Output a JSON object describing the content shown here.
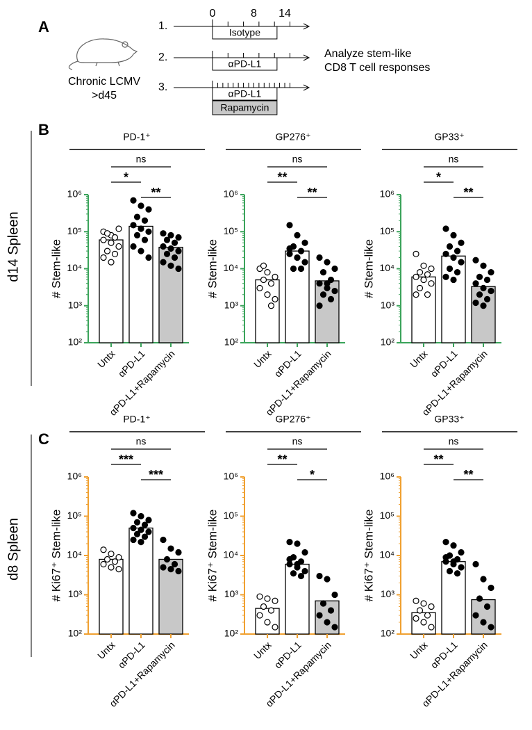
{
  "panel_labels": [
    "A",
    "B",
    "C"
  ],
  "row_labels": [
    "d14 Spleen",
    "d8 Spleen"
  ],
  "schematic": {
    "infection": [
      "Chronic LCMV",
      ">d45"
    ],
    "timeline_ticks": [
      0,
      8,
      14
    ],
    "groups": [
      "1.",
      "2.",
      "3."
    ],
    "treatments": [
      "Isotype",
      "αPD-L1",
      "αPD-L1",
      "Rapamycin"
    ],
    "readout": [
      "Analyze stem-like",
      "CD8 T cell responses"
    ]
  },
  "chart_data": [
    {
      "type": "bar",
      "title": "PD-1⁺",
      "ylabel": "# Stem-like",
      "categories": [
        "Untx",
        "αPD-L1",
        "αPD-L1+Rapamycin"
      ],
      "values": [
        60000,
        140000,
        38000
      ],
      "bar_colors": [
        "#ffffff",
        "#ffffff",
        "#c8c8c8"
      ],
      "marker_fills": [
        "#ffffff",
        "#000000",
        "#000000"
      ],
      "points": [
        [
          100000,
          80000,
          120000,
          90000,
          70000,
          60000,
          50000,
          40000,
          30000,
          25000,
          20000,
          15000
        ],
        [
          700000,
          500000,
          400000,
          250000,
          200000,
          150000,
          120000,
          100000,
          80000,
          60000,
          40000,
          30000,
          20000
        ],
        [
          90000,
          80000,
          70000,
          60000,
          50000,
          40000,
          35000,
          30000,
          25000,
          20000,
          15000,
          12000,
          10000
        ]
      ],
      "ylim": [
        100,
        1000000
      ],
      "log": true,
      "axis_color": "#3aa35a",
      "yticks": [
        {
          "value": 100,
          "label": "10²"
        },
        {
          "value": 1000,
          "label": "10³"
        },
        {
          "value": 10000,
          "label": "10⁴"
        },
        {
          "value": 100000,
          "label": "10⁵"
        },
        {
          "value": 1000000,
          "label": "10⁶"
        }
      ],
      "annotations": [
        {
          "text": "ns",
          "from": 0,
          "to": 2
        },
        {
          "text": "*",
          "from": 0,
          "to": 1
        },
        {
          "text": "**",
          "from": 1,
          "to": 2
        }
      ]
    },
    {
      "type": "bar",
      "title": "GP276⁺",
      "ylabel": "# Stem-like",
      "categories": [
        "Untx",
        "αPD-L1",
        "αPD-L1+Rapamycin"
      ],
      "values": [
        5000,
        30000,
        4700
      ],
      "bar_colors": [
        "#ffffff",
        "#ffffff",
        "#c8c8c8"
      ],
      "marker_fills": [
        "#ffffff",
        "#000000",
        "#000000"
      ],
      "points": [
        [
          10000,
          8000,
          6000,
          5000,
          4000,
          3000,
          2000,
          1500,
          12000,
          1000
        ],
        [
          150000,
          80000,
          50000,
          40000,
          30000,
          25000,
          20000,
          15000,
          10000,
          10000,
          35000,
          20000
        ],
        [
          20000,
          15000,
          10000,
          8000,
          5000,
          4000,
          3000,
          2500,
          2000,
          1500,
          1000,
          4000
        ]
      ],
      "ylim": [
        100,
        1000000
      ],
      "log": true,
      "axis_color": "#3aa35a",
      "yticks": [
        {
          "value": 100,
          "label": "10²"
        },
        {
          "value": 1000,
          "label": "10³"
        },
        {
          "value": 10000,
          "label": "10⁴"
        },
        {
          "value": 100000,
          "label": "10⁵"
        },
        {
          "value": 1000000,
          "label": "10⁶"
        }
      ],
      "annotations": [
        {
          "text": "ns",
          "from": 0,
          "to": 2
        },
        {
          "text": "**",
          "from": 0,
          "to": 1
        },
        {
          "text": "**",
          "from": 1,
          "to": 2
        }
      ]
    },
    {
      "type": "bar",
      "title": "GP33⁺",
      "ylabel": "# Stem-like",
      "categories": [
        "Untx",
        "αPD-L1",
        "αPD-L1+Rapamycin"
      ],
      "values": [
        6000,
        22000,
        3300
      ],
      "bar_colors": [
        "#ffffff",
        "#ffffff",
        "#c8c8c8"
      ],
      "marker_fills": [
        "#ffffff",
        "#000000",
        "#000000"
      ],
      "points": [
        [
          25000,
          12000,
          10000,
          8000,
          7000,
          6000,
          5000,
          4000,
          3000,
          2000,
          2000
        ],
        [
          120000,
          80000,
          50000,
          40000,
          30000,
          25000,
          20000,
          15000,
          10000,
          8000,
          6000,
          5000
        ],
        [
          17000,
          12000,
          8000,
          6000,
          5000,
          4000,
          3000,
          2500,
          2000,
          1500,
          1200,
          1000
        ]
      ],
      "ylim": [
        100,
        1000000
      ],
      "log": true,
      "axis_color": "#3aa35a",
      "yticks": [
        {
          "value": 100,
          "label": "10²"
        },
        {
          "value": 1000,
          "label": "10³"
        },
        {
          "value": 10000,
          "label": "10⁴"
        },
        {
          "value": 100000,
          "label": "10⁵"
        },
        {
          "value": 1000000,
          "label": "10⁶"
        }
      ],
      "annotations": [
        {
          "text": "ns",
          "from": 0,
          "to": 2
        },
        {
          "text": "*",
          "from": 0,
          "to": 1
        },
        {
          "text": "**",
          "from": 1,
          "to": 2
        }
      ]
    },
    {
      "type": "bar",
      "title": "PD-1⁺",
      "ylabel": "# Ki67⁺ Stem-like",
      "categories": [
        "Untx",
        "αPD-L1",
        "αPD-L1+Rapamycin"
      ],
      "values": [
        8000,
        50000,
        8000
      ],
      "bar_colors": [
        "#ffffff",
        "#ffffff",
        "#c8c8c8"
      ],
      "marker_fills": [
        "#ffffff",
        "#000000",
        "#000000"
      ],
      "points": [
        [
          14000,
          11000,
          9000,
          8000,
          7000,
          6000,
          5000,
          4500
        ],
        [
          120000,
          100000,
          80000,
          70000,
          60000,
          50000,
          45000,
          40000,
          35000,
          30000,
          25000,
          22000
        ],
        [
          25000,
          15000,
          12000,
          8000,
          6000,
          5000,
          4500,
          4000
        ]
      ],
      "ylim": [
        100,
        1000000
      ],
      "log": true,
      "axis_color": "#f0a030",
      "yticks": [
        {
          "value": 100,
          "label": "10²"
        },
        {
          "value": 1000,
          "label": "10³"
        },
        {
          "value": 10000,
          "label": "10⁴"
        },
        {
          "value": 100000,
          "label": "10⁵"
        },
        {
          "value": 1000000,
          "label": "10⁶"
        }
      ],
      "annotations": [
        {
          "text": "ns",
          "from": 0,
          "to": 2
        },
        {
          "text": "***",
          "from": 0,
          "to": 1
        },
        {
          "text": "***",
          "from": 1,
          "to": 2
        }
      ]
    },
    {
      "type": "bar",
      "title": "GP276⁺",
      "ylabel": "# Ki67⁺ Stem-like",
      "categories": [
        "Untx",
        "αPD-L1",
        "αPD-L1+Rapamycin"
      ],
      "values": [
        450,
        6000,
        700
      ],
      "bar_colors": [
        "#ffffff",
        "#ffffff",
        "#c8c8c8"
      ],
      "marker_fills": [
        "#ffffff",
        "#000000",
        "#000000"
      ],
      "points": [
        [
          900,
          800,
          700,
          500,
          400,
          300,
          200,
          150
        ],
        [
          22000,
          20000,
          12000,
          9000,
          7000,
          6000,
          5000,
          4000,
          3500,
          3000,
          8000,
          6000
        ],
        [
          3000,
          2500,
          1000,
          600,
          400,
          300,
          200,
          150
        ]
      ],
      "ylim": [
        100,
        1000000
      ],
      "log": true,
      "axis_color": "#f0a030",
      "yticks": [
        {
          "value": 100,
          "label": "10²"
        },
        {
          "value": 1000,
          "label": "10³"
        },
        {
          "value": 10000,
          "label": "10⁴"
        },
        {
          "value": 100000,
          "label": "10⁵"
        },
        {
          "value": 1000000,
          "label": "10⁶"
        }
      ],
      "annotations": [
        {
          "text": "ns",
          "from": 0,
          "to": 2
        },
        {
          "text": "**",
          "from": 0,
          "to": 1
        },
        {
          "text": "*",
          "from": 1,
          "to": 2
        }
      ]
    },
    {
      "type": "bar",
      "title": "GP33⁺",
      "ylabel": "# Ki67⁺ Stem-like",
      "categories": [
        "Untx",
        "αPD-L1",
        "αPD-L1+Rapamycin"
      ],
      "values": [
        350,
        7000,
        750
      ],
      "bar_colors": [
        "#ffffff",
        "#ffffff",
        "#c8c8c8"
      ],
      "marker_fills": [
        "#ffffff",
        "#000000",
        "#000000"
      ],
      "points": [
        [
          700,
          600,
          500,
          400,
          300,
          250,
          200,
          150
        ],
        [
          22000,
          18000,
          12000,
          10000,
          8000,
          7000,
          6000,
          5000,
          4000,
          3500,
          9000,
          7000
        ],
        [
          6000,
          2500,
          1500,
          800,
          500,
          300,
          200,
          150
        ]
      ],
      "ylim": [
        100,
        1000000
      ],
      "log": true,
      "axis_color": "#f0a030",
      "yticks": [
        {
          "value": 100,
          "label": "10²"
        },
        {
          "value": 1000,
          "label": "10³"
        },
        {
          "value": 10000,
          "label": "10⁴"
        },
        {
          "value": 100000,
          "label": "10⁵"
        },
        {
          "value": 1000000,
          "label": "10⁶"
        }
      ],
      "annotations": [
        {
          "text": "ns",
          "from": 0,
          "to": 2
        },
        {
          "text": "**",
          "from": 0,
          "to": 1
        },
        {
          "text": "**",
          "from": 1,
          "to": 2
        }
      ]
    }
  ]
}
